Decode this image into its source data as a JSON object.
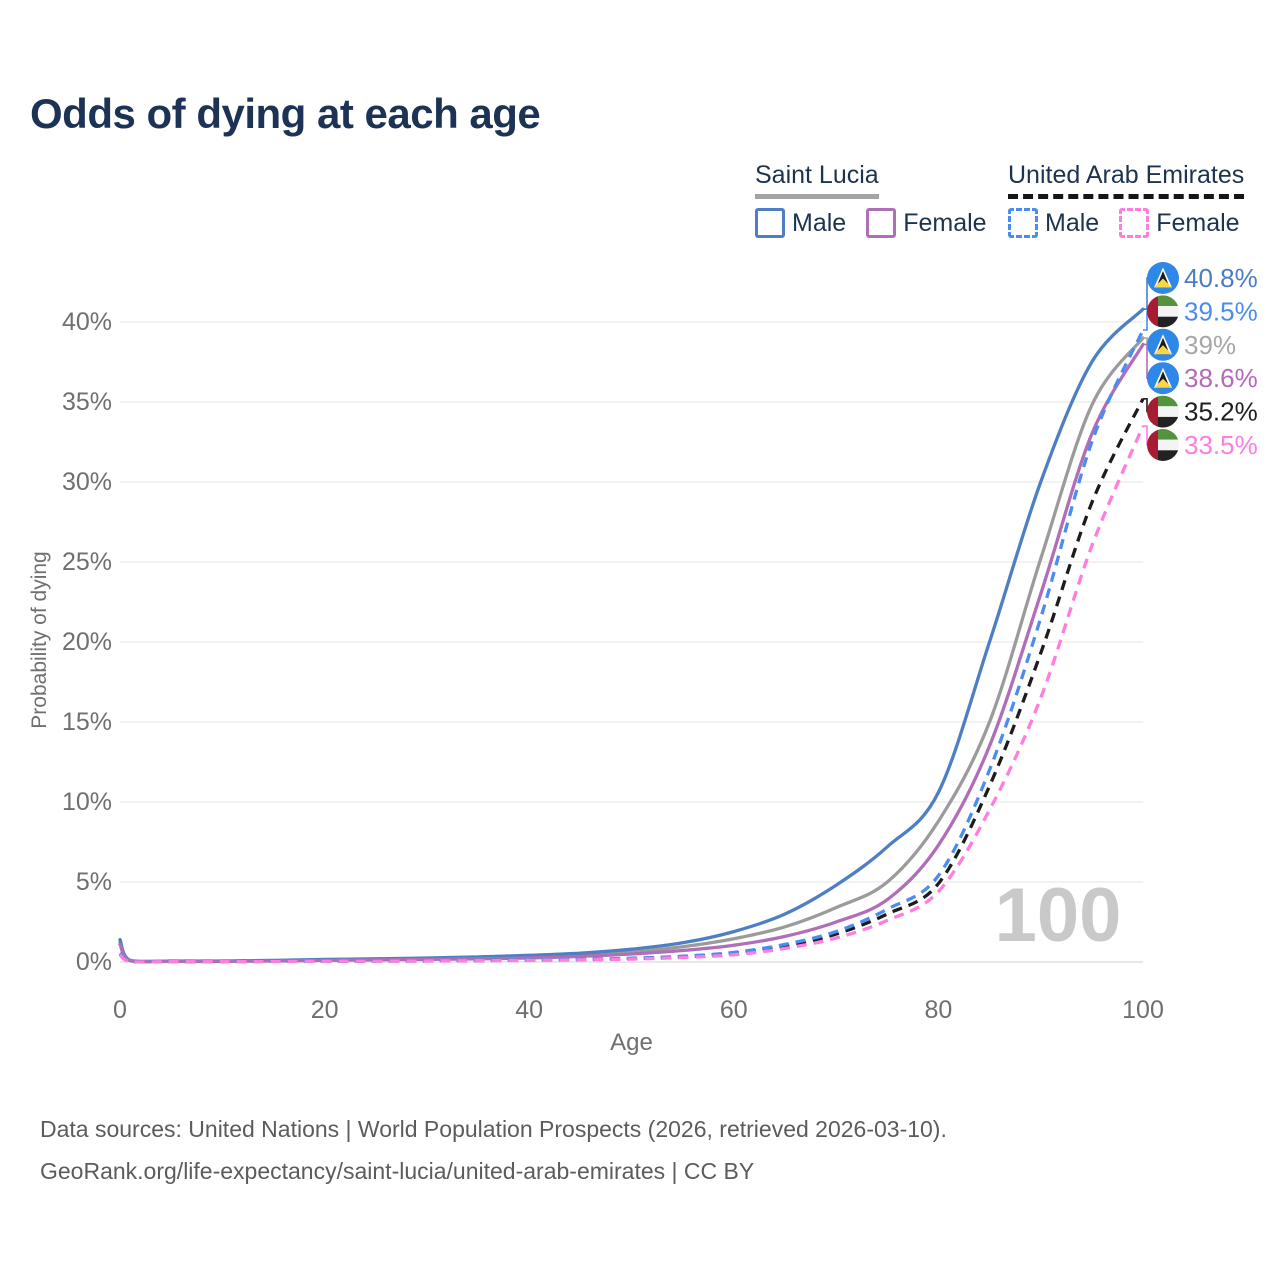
{
  "title": "Odds of dying at each age",
  "legend": {
    "groups": [
      {
        "id": "saint-lucia",
        "label": "Saint Lucia",
        "underline": "solid-gray",
        "items": [
          {
            "label": "Male"
          },
          {
            "label": "Female"
          }
        ]
      },
      {
        "id": "united-arab-emirates",
        "label": "United Arab Emirates",
        "underline": "dashed-black",
        "items": [
          {
            "label": "Male"
          },
          {
            "label": "Female"
          }
        ]
      }
    ]
  },
  "footer": {
    "line1": "Data sources: United Nations | World Population Prospects (2026, retrieved 2026-03-10).",
    "line2": "GeoRank.org/life-expectancy/saint-lucia/united-arab-emirates | CC BY"
  },
  "colors": {
    "title_text": "#1c3355",
    "legend_text": "#1d3350",
    "axis_text": "#6f6f6f",
    "gridline": "#ededed",
    "baseline": "#e0e0e0",
    "saint_lucia_male": "#4e7fc3",
    "saint_lucia_female": "#b16eb8",
    "saint_lucia_all": "#9b9b9b",
    "uae_male": "#4a8df0",
    "uae_female": "#ff7ce0",
    "uae_all": "#1c1c1c",
    "watermark": "#c9c9c9",
    "footer_text": "#5c5c5c"
  },
  "chart_data": {
    "type": "line",
    "title": "Odds of dying at each age",
    "xlabel": "Age",
    "ylabel": "Probability of dying",
    "xlim": [
      0,
      100
    ],
    "ylim_pct": [
      0,
      43
    ],
    "grid": "horizontal-only",
    "age_watermark": "100",
    "x_ticks": [
      {
        "value": 0,
        "label": "0"
      },
      {
        "value": 20,
        "label": "20"
      },
      {
        "value": 40,
        "label": "40"
      },
      {
        "value": 60,
        "label": "60"
      },
      {
        "value": 80,
        "label": "80"
      },
      {
        "value": 100,
        "label": "100"
      }
    ],
    "y_ticks": [
      {
        "value": 0,
        "label": "0%"
      },
      {
        "value": 5,
        "label": "5%"
      },
      {
        "value": 10,
        "label": "10%"
      },
      {
        "value": 15,
        "label": "15%"
      },
      {
        "value": 20,
        "label": "20%"
      },
      {
        "value": 25,
        "label": "25%"
      },
      {
        "value": 30,
        "label": "30%"
      },
      {
        "value": 35,
        "label": "35%"
      },
      {
        "value": 40,
        "label": "40%"
      }
    ],
    "x": [
      0,
      1,
      5,
      10,
      15,
      20,
      25,
      30,
      35,
      40,
      45,
      50,
      55,
      60,
      65,
      70,
      75,
      80,
      85,
      90,
      95,
      100
    ],
    "series": [
      {
        "name": "Saint Lucia All",
        "group": "Saint Lucia",
        "sex": "All",
        "color": "#9b9b9b",
        "dash": false,
        "end_value_pct": 39,
        "values_pct": [
          1.25,
          0.09,
          0.05,
          0.05,
          0.08,
          0.13,
          0.17,
          0.2,
          0.25,
          0.3,
          0.42,
          0.62,
          0.95,
          1.45,
          2.2,
          3.4,
          5.0,
          8.8,
          15.0,
          25.2,
          34.8,
          39.0
        ]
      },
      {
        "name": "Saint Lucia Male",
        "group": "Saint Lucia",
        "sex": "Male",
        "color": "#4e7fc3",
        "dash": false,
        "end_value_pct": 40.8,
        "values_pct": [
          1.4,
          0.1,
          0.06,
          0.06,
          0.1,
          0.16,
          0.2,
          0.25,
          0.32,
          0.42,
          0.55,
          0.8,
          1.2,
          1.9,
          3.0,
          4.8,
          7.2,
          10.6,
          20.0,
          30.0,
          37.5,
          40.8
        ]
      },
      {
        "name": "Saint Lucia Female",
        "group": "Saint Lucia",
        "sex": "Female",
        "color": "#b16eb8",
        "dash": false,
        "end_value_pct": 38.6,
        "values_pct": [
          1.1,
          0.08,
          0.04,
          0.04,
          0.06,
          0.1,
          0.13,
          0.16,
          0.2,
          0.25,
          0.35,
          0.5,
          0.72,
          1.05,
          1.6,
          2.5,
          3.9,
          7.3,
          13.5,
          23.0,
          33.0,
          38.6
        ]
      },
      {
        "name": "United Arab Emirates All",
        "group": "United Arab Emirates",
        "sex": "All",
        "color": "#1c1c1c",
        "dash": true,
        "end_value_pct": 35.2,
        "values_pct": [
          0.5,
          0.045,
          0.03,
          0.03,
          0.04,
          0.05,
          0.06,
          0.07,
          0.09,
          0.12,
          0.15,
          0.21,
          0.32,
          0.55,
          1.0,
          1.75,
          3.0,
          4.9,
          11.0,
          19.3,
          28.7,
          35.2
        ]
      },
      {
        "name": "United Arab Emirates Male",
        "group": "United Arab Emirates",
        "sex": "Male",
        "color": "#4a8df0",
        "dash": true,
        "end_value_pct": 39.5,
        "values_pct": [
          0.55,
          0.05,
          0.03,
          0.03,
          0.04,
          0.06,
          0.07,
          0.08,
          0.1,
          0.13,
          0.17,
          0.24,
          0.36,
          0.6,
          1.1,
          1.9,
          3.3,
          5.4,
          12.0,
          21.5,
          32.5,
          39.5
        ]
      },
      {
        "name": "United Arab Emirates Female",
        "group": "United Arab Emirates",
        "sex": "Female",
        "color": "#ff7ce0",
        "dash": true,
        "end_value_pct": 33.5,
        "values_pct": [
          0.45,
          0.04,
          0.025,
          0.025,
          0.03,
          0.045,
          0.055,
          0.065,
          0.08,
          0.1,
          0.13,
          0.18,
          0.28,
          0.45,
          0.85,
          1.5,
          2.6,
          4.4,
          9.5,
          16.5,
          26.0,
          33.5
        ]
      }
    ],
    "end_labels": [
      {
        "flag": "saint-lucia",
        "series": "Saint Lucia Male",
        "text": "40.8%",
        "value_pct": 40.8,
        "color": "#4c7dc4"
      },
      {
        "flag": "uae",
        "series": "United Arab Emirates Male",
        "text": "39.5%",
        "value_pct": 39.5,
        "color": "#4a8df0"
      },
      {
        "flag": "saint-lucia",
        "series": "Saint Lucia All",
        "text": "39%",
        "value_pct": 39.0,
        "color": "#a7a7a7"
      },
      {
        "flag": "saint-lucia",
        "series": "Saint Lucia Female",
        "text": "38.6%",
        "value_pct": 38.6,
        "color": "#b56ab8"
      },
      {
        "flag": "uae",
        "series": "United Arab Emirates All",
        "text": "35.2%",
        "value_pct": 35.2,
        "color": "#1f1f1f"
      },
      {
        "flag": "uae",
        "series": "United Arab Emirates Female",
        "text": "33.5%",
        "value_pct": 33.5,
        "color": "#ff7ce0"
      }
    ],
    "legend_position": "top-right"
  }
}
